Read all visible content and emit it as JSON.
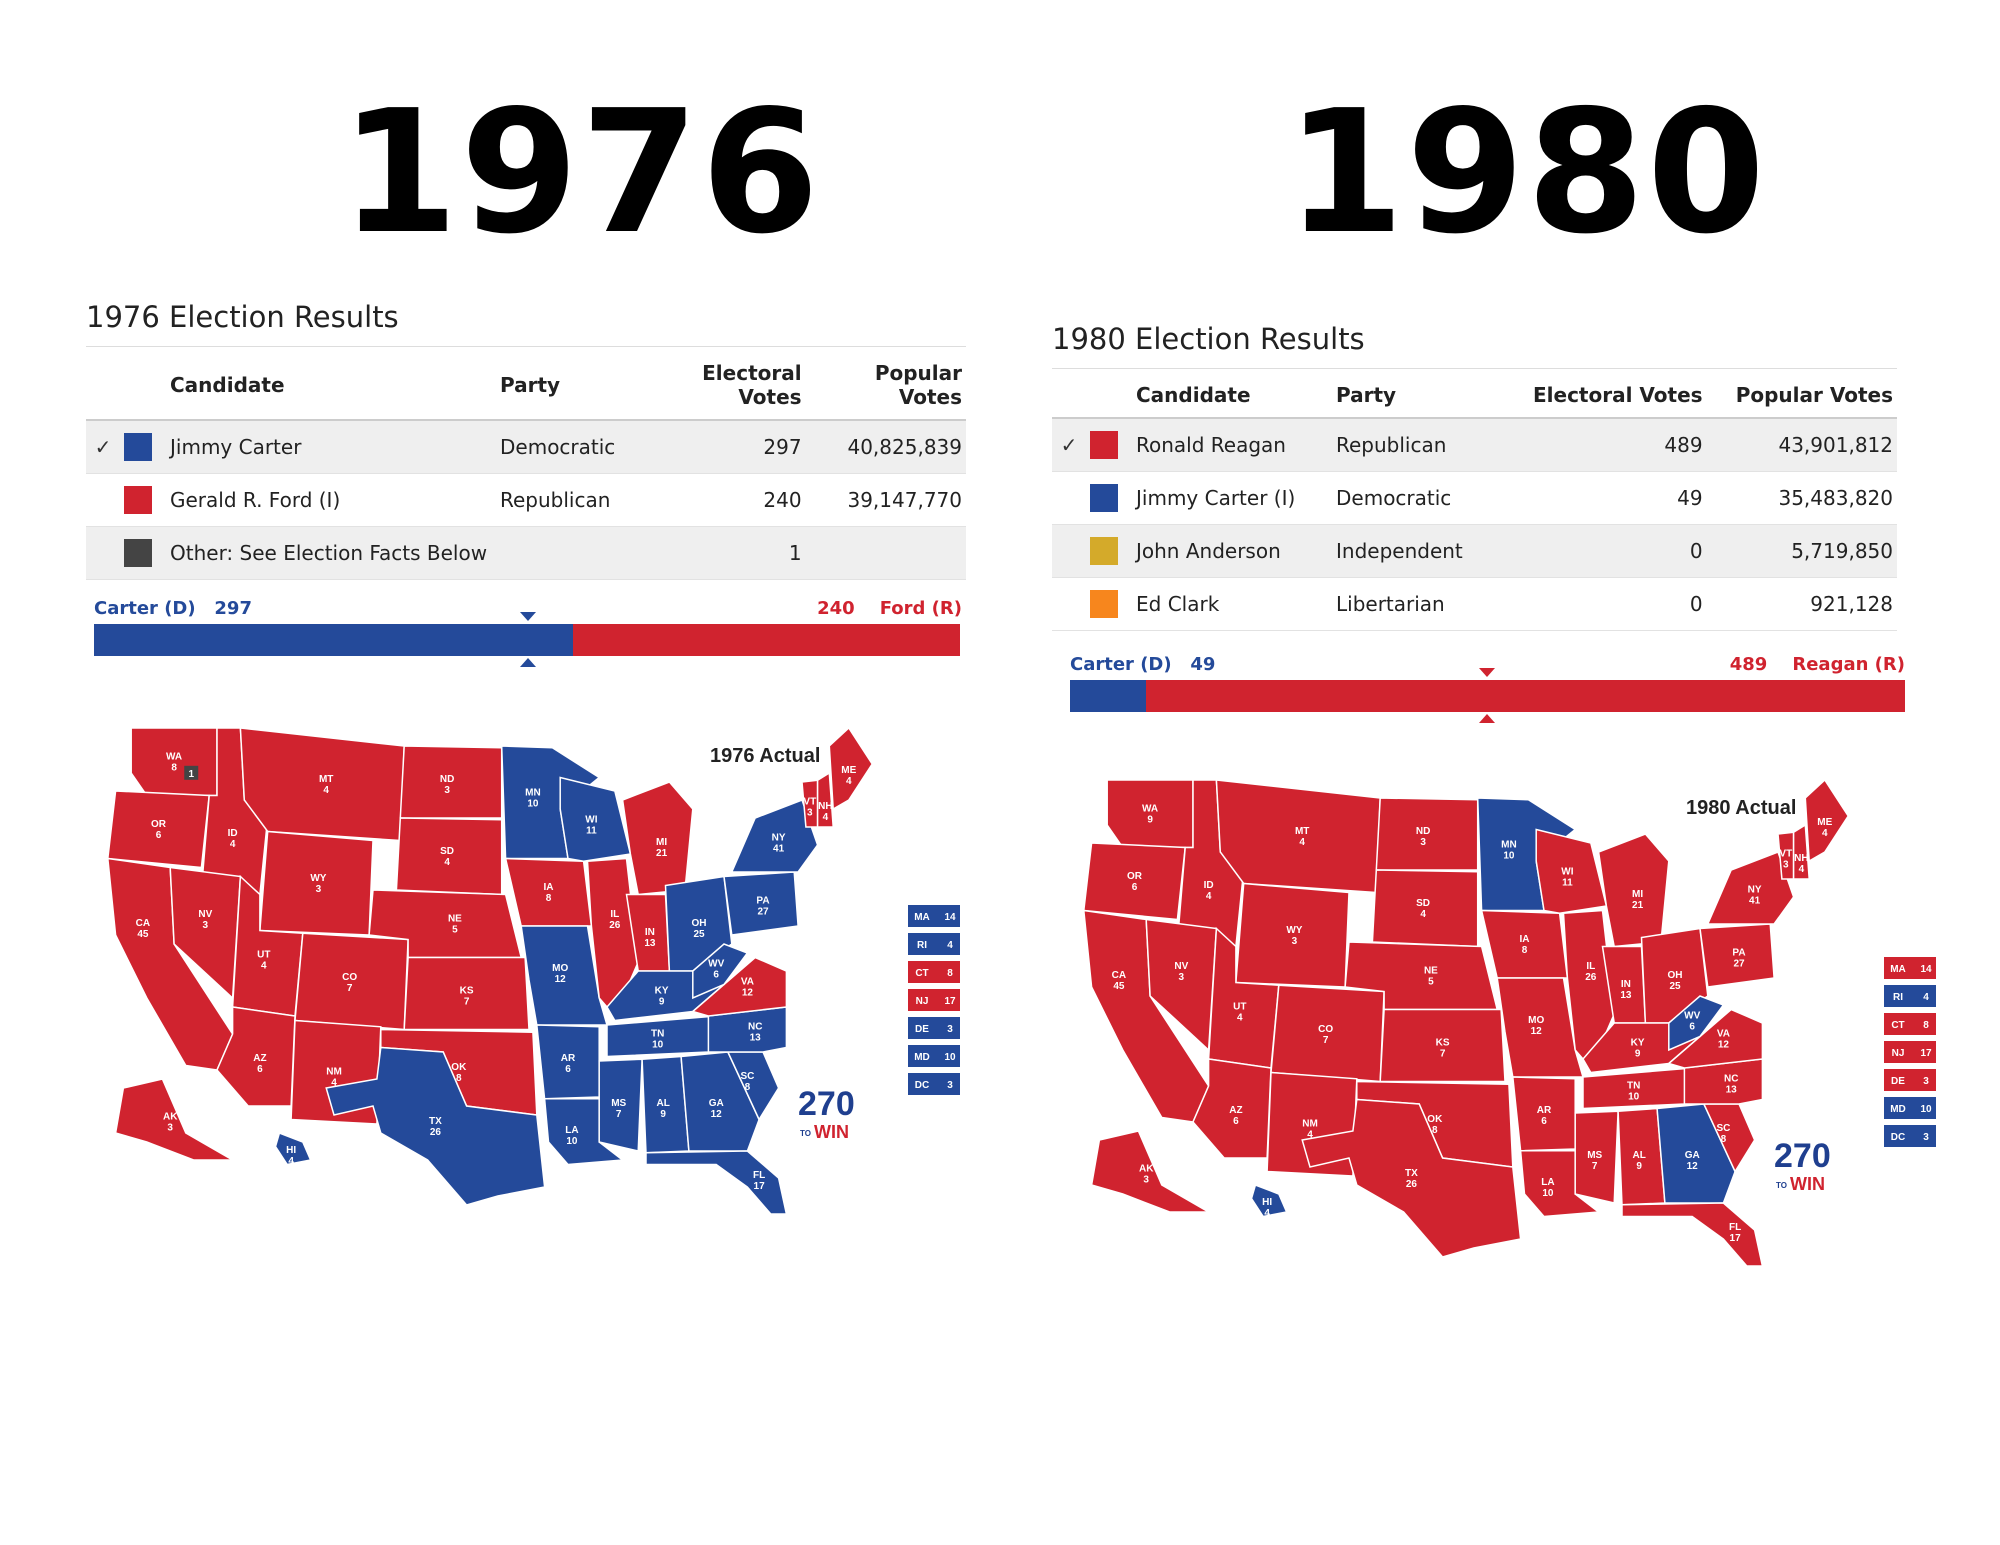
{
  "years": {
    "left": "1976",
    "right": "1980"
  },
  "colors": {
    "dem": "#244a9a",
    "rep": "#d0232f",
    "other": "#444444",
    "independent": "#d4aa2a",
    "libertarian": "#f7861d"
  },
  "left": {
    "title": "1976 Election Results",
    "headers": {
      "candidate": "Candidate",
      "party": "Party",
      "electoral": "Electoral Votes",
      "popular": "Popular Votes"
    },
    "rows": [
      {
        "check": "✓",
        "color": "#244a9a",
        "candidate": "Jimmy Carter",
        "party": "Democratic",
        "electoral": "297",
        "popular": "40,825,839"
      },
      {
        "check": "",
        "color": "#d0232f",
        "candidate": "Gerald R. Ford (I)",
        "party": "Republican",
        "electoral": "240",
        "popular": "39,147,770"
      },
      {
        "check": "",
        "color": "#444444",
        "candidate": "Other: See Election Facts Below",
        "party": "",
        "electoral": "1",
        "popular": ""
      }
    ],
    "bar": {
      "left_name": "Carter (D)",
      "left_votes": "297",
      "right_votes": "240",
      "right_name": "Ford (R)",
      "dem_ev": 297,
      "rep_ev": 240,
      "total_ev": 538
    },
    "map": {
      "caption": "1976 Actual",
      "states": [
        {
          "abbr": "WA",
          "ev": "8",
          "w": "rep"
        },
        {
          "abbr": "OR",
          "ev": "6",
          "w": "rep"
        },
        {
          "abbr": "CA",
          "ev": "45",
          "w": "rep"
        },
        {
          "abbr": "ID",
          "ev": "4",
          "w": "rep"
        },
        {
          "abbr": "NV",
          "ev": "3",
          "w": "rep"
        },
        {
          "abbr": "MT",
          "ev": "4",
          "w": "rep"
        },
        {
          "abbr": "WY",
          "ev": "3",
          "w": "rep"
        },
        {
          "abbr": "UT",
          "ev": "4",
          "w": "rep"
        },
        {
          "abbr": "AZ",
          "ev": "6",
          "w": "rep"
        },
        {
          "abbr": "CO",
          "ev": "7",
          "w": "rep"
        },
        {
          "abbr": "NM",
          "ev": "4",
          "w": "rep"
        },
        {
          "abbr": "ND",
          "ev": "3",
          "w": "rep"
        },
        {
          "abbr": "SD",
          "ev": "4",
          "w": "rep"
        },
        {
          "abbr": "NE",
          "ev": "5",
          "w": "rep"
        },
        {
          "abbr": "KS",
          "ev": "7",
          "w": "rep"
        },
        {
          "abbr": "OK",
          "ev": "8",
          "w": "rep"
        },
        {
          "abbr": "TX",
          "ev": "26",
          "w": "dem"
        },
        {
          "abbr": "MN",
          "ev": "10",
          "w": "dem"
        },
        {
          "abbr": "IA",
          "ev": "8",
          "w": "rep"
        },
        {
          "abbr": "MO",
          "ev": "12",
          "w": "dem"
        },
        {
          "abbr": "AR",
          "ev": "6",
          "w": "dem"
        },
        {
          "abbr": "LA",
          "ev": "10",
          "w": "dem"
        },
        {
          "abbr": "WI",
          "ev": "11",
          "w": "dem"
        },
        {
          "abbr": "IL",
          "ev": "26",
          "w": "rep"
        },
        {
          "abbr": "MI",
          "ev": "21",
          "w": "rep"
        },
        {
          "abbr": "IN",
          "ev": "13",
          "w": "rep"
        },
        {
          "abbr": "OH",
          "ev": "25",
          "w": "dem"
        },
        {
          "abbr": "KY",
          "ev": "9",
          "w": "dem"
        },
        {
          "abbr": "TN",
          "ev": "10",
          "w": "dem"
        },
        {
          "abbr": "MS",
          "ev": "7",
          "w": "dem"
        },
        {
          "abbr": "AL",
          "ev": "9",
          "w": "dem"
        },
        {
          "abbr": "GA",
          "ev": "12",
          "w": "dem"
        },
        {
          "abbr": "FL",
          "ev": "17",
          "w": "dem"
        },
        {
          "abbr": "SC",
          "ev": "8",
          "w": "dem"
        },
        {
          "abbr": "NC",
          "ev": "13",
          "w": "dem"
        },
        {
          "abbr": "VA",
          "ev": "12",
          "w": "rep"
        },
        {
          "abbr": "WV",
          "ev": "6",
          "w": "dem"
        },
        {
          "abbr": "PA",
          "ev": "27",
          "w": "dem"
        },
        {
          "abbr": "NY",
          "ev": "41",
          "w": "dem"
        },
        {
          "abbr": "VT",
          "ev": "3",
          "w": "rep"
        },
        {
          "abbr": "NH",
          "ev": "4",
          "w": "rep"
        },
        {
          "abbr": "ME",
          "ev": "4",
          "w": "rep"
        },
        {
          "abbr": "AK",
          "ev": "3",
          "w": "rep"
        },
        {
          "abbr": "HI",
          "ev": "4",
          "w": "dem"
        }
      ],
      "small_states": [
        {
          "abbr": "MA",
          "ev": "14",
          "w": "dem"
        },
        {
          "abbr": "RI",
          "ev": "4",
          "w": "dem"
        },
        {
          "abbr": "CT",
          "ev": "8",
          "w": "rep"
        },
        {
          "abbr": "NJ",
          "ev": "17",
          "w": "rep"
        },
        {
          "abbr": "DE",
          "ev": "3",
          "w": "dem"
        },
        {
          "abbr": "MD",
          "ev": "10",
          "w": "dem"
        },
        {
          "abbr": "DC",
          "ev": "3",
          "w": "dem"
        }
      ],
      "faithless_badge": "1"
    }
  },
  "right": {
    "title": "1980 Election Results",
    "headers": {
      "candidate": "Candidate",
      "party": "Party",
      "electoral": "Electoral Votes",
      "popular": "Popular Votes"
    },
    "rows": [
      {
        "check": "✓",
        "color": "#d0232f",
        "candidate": "Ronald Reagan",
        "party": "Republican",
        "electoral": "489",
        "popular": "43,901,812"
      },
      {
        "check": "",
        "color": "#244a9a",
        "candidate": "Jimmy Carter (I)",
        "party": "Democratic",
        "electoral": "49",
        "popular": "35,483,820"
      },
      {
        "check": "",
        "color": "#d4aa2a",
        "candidate": "John Anderson",
        "party": "Independent",
        "electoral": "0",
        "popular": "5,719,850"
      },
      {
        "check": "",
        "color": "#f7861d",
        "candidate": "Ed Clark",
        "party": "Libertarian",
        "electoral": "0",
        "popular": "921,128"
      }
    ],
    "bar": {
      "left_name": "Carter (D)",
      "left_votes": "49",
      "right_votes": "489",
      "right_name": "Reagan (R)",
      "dem_ev": 49,
      "rep_ev": 489,
      "total_ev": 538
    },
    "map": {
      "caption": "1980 Actual",
      "states": [
        {
          "abbr": "WA",
          "ev": "9",
          "w": "rep"
        },
        {
          "abbr": "OR",
          "ev": "6",
          "w": "rep"
        },
        {
          "abbr": "CA",
          "ev": "45",
          "w": "rep"
        },
        {
          "abbr": "ID",
          "ev": "4",
          "w": "rep"
        },
        {
          "abbr": "NV",
          "ev": "3",
          "w": "rep"
        },
        {
          "abbr": "MT",
          "ev": "4",
          "w": "rep"
        },
        {
          "abbr": "WY",
          "ev": "3",
          "w": "rep"
        },
        {
          "abbr": "UT",
          "ev": "4",
          "w": "rep"
        },
        {
          "abbr": "AZ",
          "ev": "6",
          "w": "rep"
        },
        {
          "abbr": "CO",
          "ev": "7",
          "w": "rep"
        },
        {
          "abbr": "NM",
          "ev": "4",
          "w": "rep"
        },
        {
          "abbr": "ND",
          "ev": "3",
          "w": "rep"
        },
        {
          "abbr": "SD",
          "ev": "4",
          "w": "rep"
        },
        {
          "abbr": "NE",
          "ev": "5",
          "w": "rep"
        },
        {
          "abbr": "KS",
          "ev": "7",
          "w": "rep"
        },
        {
          "abbr": "OK",
          "ev": "8",
          "w": "rep"
        },
        {
          "abbr": "TX",
          "ev": "26",
          "w": "rep"
        },
        {
          "abbr": "MN",
          "ev": "10",
          "w": "dem"
        },
        {
          "abbr": "IA",
          "ev": "8",
          "w": "rep"
        },
        {
          "abbr": "MO",
          "ev": "12",
          "w": "rep"
        },
        {
          "abbr": "AR",
          "ev": "6",
          "w": "rep"
        },
        {
          "abbr": "LA",
          "ev": "10",
          "w": "rep"
        },
        {
          "abbr": "WI",
          "ev": "11",
          "w": "rep"
        },
        {
          "abbr": "IL",
          "ev": "26",
          "w": "rep"
        },
        {
          "abbr": "MI",
          "ev": "21",
          "w": "rep"
        },
        {
          "abbr": "IN",
          "ev": "13",
          "w": "rep"
        },
        {
          "abbr": "OH",
          "ev": "25",
          "w": "rep"
        },
        {
          "abbr": "KY",
          "ev": "9",
          "w": "rep"
        },
        {
          "abbr": "TN",
          "ev": "10",
          "w": "rep"
        },
        {
          "abbr": "MS",
          "ev": "7",
          "w": "rep"
        },
        {
          "abbr": "AL",
          "ev": "9",
          "w": "rep"
        },
        {
          "abbr": "GA",
          "ev": "12",
          "w": "dem"
        },
        {
          "abbr": "FL",
          "ev": "17",
          "w": "rep"
        },
        {
          "abbr": "SC",
          "ev": "8",
          "w": "rep"
        },
        {
          "abbr": "NC",
          "ev": "13",
          "w": "rep"
        },
        {
          "abbr": "VA",
          "ev": "12",
          "w": "rep"
        },
        {
          "abbr": "WV",
          "ev": "6",
          "w": "dem"
        },
        {
          "abbr": "PA",
          "ev": "27",
          "w": "rep"
        },
        {
          "abbr": "NY",
          "ev": "41",
          "w": "rep"
        },
        {
          "abbr": "VT",
          "ev": "3",
          "w": "rep"
        },
        {
          "abbr": "NH",
          "ev": "4",
          "w": "rep"
        },
        {
          "abbr": "ME",
          "ev": "4",
          "w": "rep"
        },
        {
          "abbr": "AK",
          "ev": "3",
          "w": "rep"
        },
        {
          "abbr": "HI",
          "ev": "4",
          "w": "dem"
        }
      ],
      "small_states": [
        {
          "abbr": "MA",
          "ev": "14",
          "w": "rep"
        },
        {
          "abbr": "RI",
          "ev": "4",
          "w": "dem"
        },
        {
          "abbr": "CT",
          "ev": "8",
          "w": "rep"
        },
        {
          "abbr": "NJ",
          "ev": "17",
          "w": "rep"
        },
        {
          "abbr": "DE",
          "ev": "3",
          "w": "rep"
        },
        {
          "abbr": "MD",
          "ev": "10",
          "w": "dem"
        },
        {
          "abbr": "DC",
          "ev": "3",
          "w": "dem"
        }
      ]
    }
  },
  "logo": {
    "number": "270",
    "small": "TO",
    "word": "WIN"
  }
}
